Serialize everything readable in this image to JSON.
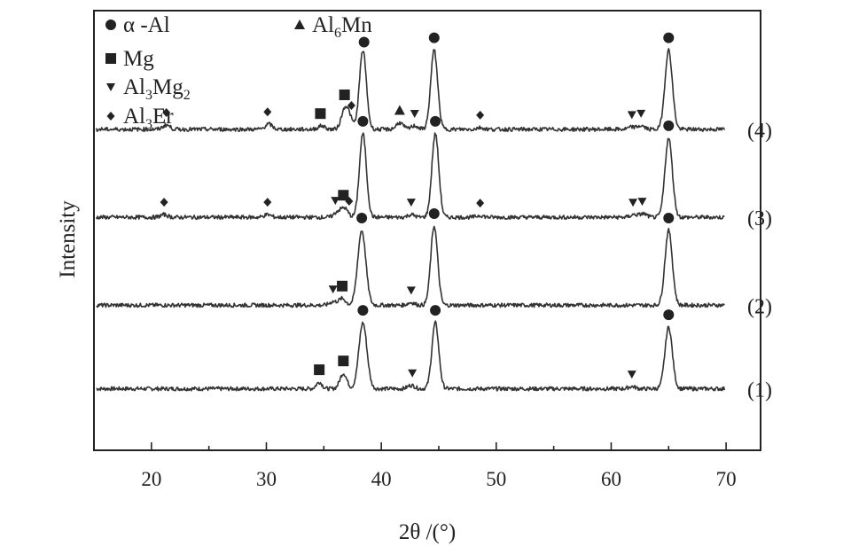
{
  "chart_data": {
    "type": "line",
    "xlabel": "2θ /(°)",
    "ylabel": "Intensity",
    "xlim": [
      15,
      73
    ],
    "ylim": [
      0,
      100
    ],
    "xticks": [
      20,
      30,
      40,
      50,
      60,
      70
    ],
    "grid": false,
    "legend_position": "top-left",
    "legend": [
      {
        "symbol": "circle",
        "label": "α -Al"
      },
      {
        "symbol": "triangle-up",
        "label": "Al",
        "sub": "6",
        "label_end": "Mn"
      },
      {
        "symbol": "square",
        "label": "Mg"
      },
      {
        "symbol": "triangle-down",
        "label": "Al",
        "sub": "3",
        "label_mid": "Mg",
        "sub2": "2"
      },
      {
        "symbol": "diamond",
        "label": "Al",
        "sub": "3",
        "label_mid": "Er"
      }
    ],
    "series": [
      {
        "name": "(1)",
        "baseline": 14,
        "peaks": [
          {
            "x": 34.6,
            "h": 1.5,
            "w": 0.25
          },
          {
            "x": 36.7,
            "h": 3.5,
            "w": 0.3
          },
          {
            "x": 38.4,
            "h": 15,
            "w": 0.35
          },
          {
            "x": 42.6,
            "h": 0.8,
            "w": 0.3
          },
          {
            "x": 44.7,
            "h": 15,
            "w": 0.3
          },
          {
            "x": 61.8,
            "h": 0.5,
            "w": 0.3
          },
          {
            "x": 65.0,
            "h": 14,
            "w": 0.32
          }
        ],
        "markers": [
          {
            "x": 34.6,
            "symbol": "square"
          },
          {
            "x": 36.7,
            "symbol": "square"
          },
          {
            "x": 38.4,
            "symbol": "circle"
          },
          {
            "x": 42.7,
            "symbol": "triangle-down"
          },
          {
            "x": 44.7,
            "symbol": "circle"
          },
          {
            "x": 61.8,
            "symbol": "triangle-down"
          },
          {
            "x": 65.0,
            "symbol": "circle"
          }
        ]
      },
      {
        "name": "(2)",
        "baseline": 33,
        "peaks": [
          {
            "x": 35.8,
            "h": 0.8,
            "w": 0.3
          },
          {
            "x": 36.6,
            "h": 1.5,
            "w": 0.3
          },
          {
            "x": 38.3,
            "h": 17,
            "w": 0.35
          },
          {
            "x": 42.6,
            "h": 0.6,
            "w": 0.3
          },
          {
            "x": 44.6,
            "h": 18,
            "w": 0.3
          },
          {
            "x": 65.0,
            "h": 17,
            "w": 0.32
          }
        ],
        "markers": [
          {
            "x": 35.8,
            "symbol": "triangle-down"
          },
          {
            "x": 36.6,
            "symbol": "square"
          },
          {
            "x": 38.3,
            "symbol": "circle"
          },
          {
            "x": 42.6,
            "symbol": "triangle-down"
          },
          {
            "x": 44.6,
            "symbol": "circle"
          },
          {
            "x": 65.0,
            "symbol": "circle"
          }
        ]
      },
      {
        "name": "(3)",
        "baseline": 53,
        "peaks": [
          {
            "x": 21.1,
            "h": 0.6,
            "w": 0.3
          },
          {
            "x": 30.1,
            "h": 0.6,
            "w": 0.3
          },
          {
            "x": 36.2,
            "h": 1.2,
            "w": 0.3
          },
          {
            "x": 36.8,
            "h": 2.0,
            "w": 0.3
          },
          {
            "x": 38.4,
            "h": 19,
            "w": 0.3
          },
          {
            "x": 42.6,
            "h": 0.6,
            "w": 0.3
          },
          {
            "x": 44.7,
            "h": 19,
            "w": 0.3
          },
          {
            "x": 48.6,
            "h": 0.4,
            "w": 0.3
          },
          {
            "x": 62.0,
            "h": 0.6,
            "w": 0.3
          },
          {
            "x": 62.8,
            "h": 0.8,
            "w": 0.3
          },
          {
            "x": 65.0,
            "h": 18,
            "w": 0.32
          }
        ],
        "markers": [
          {
            "x": 21.1,
            "symbol": "diamond"
          },
          {
            "x": 30.1,
            "symbol": "diamond"
          },
          {
            "x": 36.0,
            "symbol": "triangle-down"
          },
          {
            "x": 36.7,
            "symbol": "square"
          },
          {
            "x": 37.2,
            "symbol": "diamond"
          },
          {
            "x": 38.4,
            "symbol": "circle"
          },
          {
            "x": 42.6,
            "symbol": "triangle-down"
          },
          {
            "x": 44.7,
            "symbol": "circle"
          },
          {
            "x": 48.6,
            "symbol": "diamond"
          },
          {
            "x": 61.9,
            "symbol": "triangle-down"
          },
          {
            "x": 62.7,
            "symbol": "triangle-down"
          },
          {
            "x": 65.0,
            "symbol": "circle"
          }
        ]
      },
      {
        "name": "(4)",
        "baseline": 73,
        "peaks": [
          {
            "x": 21.3,
            "h": 1.0,
            "w": 0.3
          },
          {
            "x": 30.2,
            "h": 1.2,
            "w": 0.3
          },
          {
            "x": 34.8,
            "h": 0.8,
            "w": 0.3
          },
          {
            "x": 36.8,
            "h": 4.0,
            "w": 0.3
          },
          {
            "x": 37.2,
            "h": 2.5,
            "w": 0.3
          },
          {
            "x": 38.4,
            "h": 18,
            "w": 0.3
          },
          {
            "x": 41.6,
            "h": 1.5,
            "w": 0.3
          },
          {
            "x": 42.9,
            "h": 0.8,
            "w": 0.3
          },
          {
            "x": 44.6,
            "h": 18,
            "w": 0.3
          },
          {
            "x": 48.6,
            "h": 0.4,
            "w": 0.3
          },
          {
            "x": 61.8,
            "h": 0.5,
            "w": 0.3
          },
          {
            "x": 62.6,
            "h": 0.8,
            "w": 0.3
          },
          {
            "x": 65.0,
            "h": 18,
            "w": 0.32
          }
        ],
        "markers": [
          {
            "x": 21.3,
            "symbol": "diamond"
          },
          {
            "x": 30.1,
            "symbol": "diamond"
          },
          {
            "x": 34.7,
            "symbol": "square"
          },
          {
            "x": 36.8,
            "symbol": "square"
          },
          {
            "x": 37.4,
            "symbol": "diamond"
          },
          {
            "x": 38.5,
            "symbol": "circle"
          },
          {
            "x": 41.6,
            "symbol": "triangle-up"
          },
          {
            "x": 42.9,
            "symbol": "triangle-down"
          },
          {
            "x": 44.6,
            "symbol": "circle"
          },
          {
            "x": 48.6,
            "symbol": "diamond"
          },
          {
            "x": 61.8,
            "symbol": "triangle-down"
          },
          {
            "x": 62.6,
            "symbol": "triangle-down"
          },
          {
            "x": 65.0,
            "symbol": "circle"
          }
        ]
      }
    ]
  }
}
